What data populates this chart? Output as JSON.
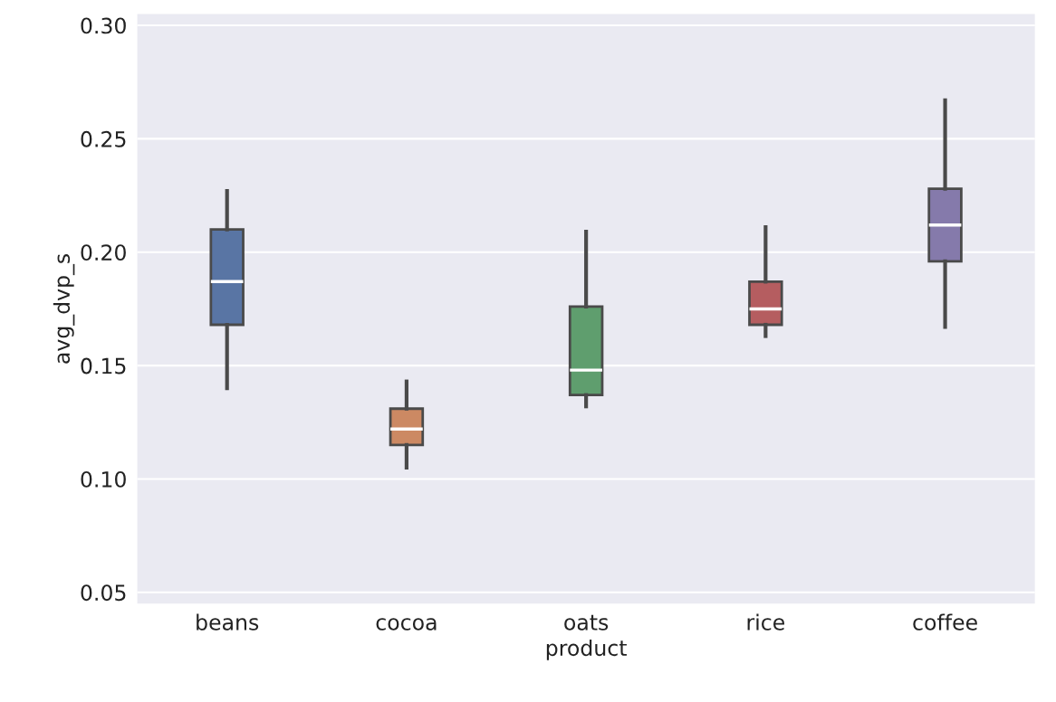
{
  "chart_data": {
    "type": "box",
    "xlabel": "product",
    "ylabel": "avg_dvp_s",
    "categories": [
      "beans",
      "cocoa",
      "oats",
      "rice",
      "coffee"
    ],
    "colors": [
      "#5975a4",
      "#cc8963",
      "#5f9e6e",
      "#b55d60",
      "#857aab"
    ],
    "boxes": [
      {
        "low": 0.14,
        "q1": 0.168,
        "median": 0.187,
        "q3": 0.21,
        "high": 0.227
      },
      {
        "low": 0.105,
        "q1": 0.115,
        "median": 0.122,
        "q3": 0.131,
        "high": 0.143
      },
      {
        "low": 0.132,
        "q1": 0.137,
        "median": 0.148,
        "q3": 0.176,
        "high": 0.209
      },
      {
        "low": 0.163,
        "q1": 0.168,
        "median": 0.175,
        "q3": 0.187,
        "high": 0.211
      },
      {
        "low": 0.167,
        "q1": 0.196,
        "median": 0.212,
        "q3": 0.228,
        "high": 0.267
      }
    ],
    "ylim": [
      0.045,
      0.305
    ],
    "yticks": [
      {
        "value": 0.05,
        "label": "0.05"
      },
      {
        "value": 0.1,
        "label": "0.10"
      },
      {
        "value": 0.15,
        "label": "0.15"
      },
      {
        "value": 0.2,
        "label": "0.20"
      },
      {
        "value": 0.25,
        "label": "0.25"
      },
      {
        "value": 0.3,
        "label": "0.30"
      }
    ],
    "grid": "y"
  }
}
